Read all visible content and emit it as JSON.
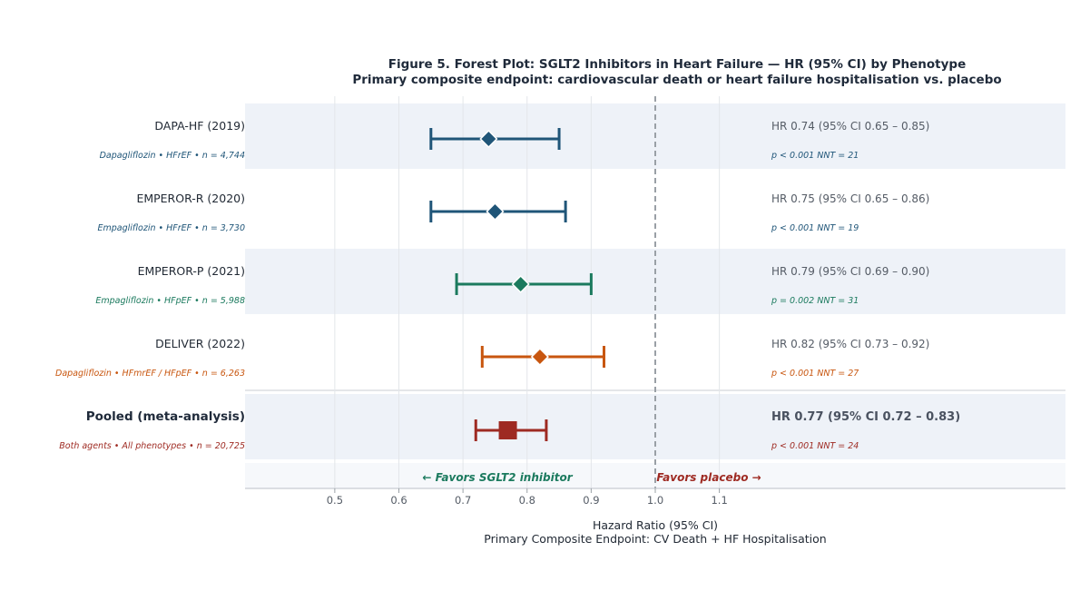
{
  "chart_data": {
    "type": "forest",
    "title": "Figure 5. Forest Plot: SGLT2 Inhibitors in Heart Failure — HR (95% CI) by Phenotype",
    "subtitle": "Primary composite endpoint: cardiovascular death or heart failure hospitalisation vs. placebo",
    "xlabel": "Hazard Ratio (95% CI)",
    "xlabel2": "Primary Composite Endpoint: CV Death + HF Hospitalisation",
    "xlim": [
      0.36,
      1.64
    ],
    "ticks": [
      0.5,
      0.6,
      0.7,
      0.8,
      0.9,
      1.0,
      1.1
    ],
    "tick_labels": [
      "0.5",
      "0.6",
      "0.7",
      "0.8",
      "0.9",
      "1.0",
      "1.1"
    ],
    "reference_line": 1.0,
    "favor_left": "← Favors SGLT2 inhibitor",
    "favor_right": "Favors placebo →",
    "studies": [
      {
        "name": "DAPA-HF (2019)",
        "sub": "Dapagliflozin  •  HFrEF  •  n = 4,744",
        "hr": 0.74,
        "lo": 0.65,
        "hi": 0.85,
        "hr_text": "HR 0.74  (95% CI  0.65 – 0.85)",
        "p_text": "p < 0.001   NNT = 21",
        "color": "#1f5578",
        "marker": "diamond",
        "pooled": false
      },
      {
        "name": "EMPEROR-R (2020)",
        "sub": "Empagliflozin  •  HFrEF  •  n = 3,730",
        "hr": 0.75,
        "lo": 0.65,
        "hi": 0.86,
        "hr_text": "HR 0.75  (95% CI  0.65 – 0.86)",
        "p_text": "p < 0.001   NNT = 19",
        "color": "#1f5578",
        "marker": "diamond",
        "pooled": false
      },
      {
        "name": "EMPEROR-P (2021)",
        "sub": "Empagliflozin  •  HFpEF  •  n = 5,988",
        "hr": 0.79,
        "lo": 0.69,
        "hi": 0.9,
        "hr_text": "HR 0.79  (95% CI  0.69 – 0.90)",
        "p_text": "p = 0.002   NNT = 31",
        "color": "#1b7a5e",
        "marker": "diamond",
        "pooled": false
      },
      {
        "name": "DELIVER (2022)",
        "sub": "Dapagliflozin  •  HFmrEF / HFpEF  •  n = 6,263",
        "hr": 0.82,
        "lo": 0.73,
        "hi": 0.92,
        "hr_text": "HR 0.82  (95% CI  0.73 – 0.92)",
        "p_text": "p < 0.001   NNT = 27",
        "color": "#c8560f",
        "marker": "diamond",
        "pooled": false
      },
      {
        "name": "Pooled  (meta-analysis)",
        "sub": "Both agents  •  All phenotypes  •  n = 20,725",
        "hr": 0.77,
        "lo": 0.72,
        "hi": 0.83,
        "hr_text": "HR 0.77  (95% CI  0.72 – 0.83)",
        "p_text": "p < 0.001   NNT = 24",
        "color": "#9e2a22",
        "marker": "square",
        "pooled": true
      }
    ],
    "colors": {
      "stripe": "#eef2f8",
      "favor_left": "#1b7a5e",
      "favor_right": "#9e2a22",
      "reference": "#9aa0a6",
      "axis": "#c8ccd2"
    }
  }
}
